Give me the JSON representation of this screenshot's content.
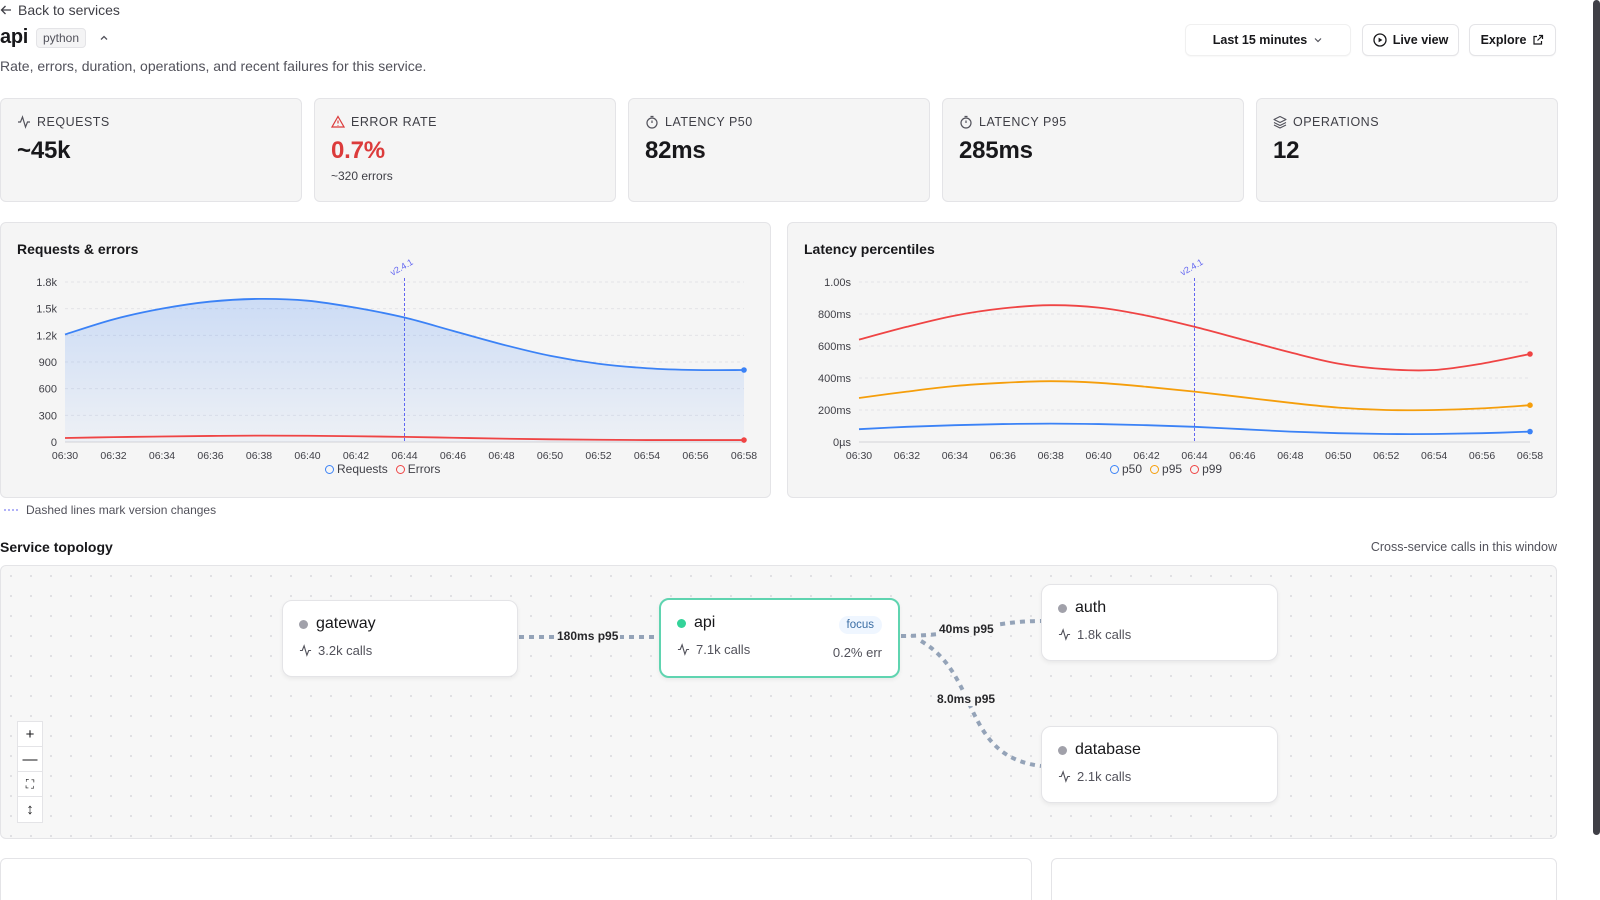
{
  "header": {
    "back_label": "Back to services",
    "service_name": "api",
    "language_badge": "python",
    "description": "Rate, errors, duration, operations, and recent failures for this service.",
    "time_range": "Last 15 minutes",
    "live_view_label": "Live view",
    "explore_label": "Explore"
  },
  "stats": [
    {
      "label": "REQUESTS",
      "icon": "activity-icon",
      "value": "~45k",
      "sub": ""
    },
    {
      "label": "ERROR RATE",
      "icon": "alert-triangle-icon",
      "value": "0.7%",
      "sub": "~320 errors",
      "value_color": "#dc3b3b"
    },
    {
      "label": "LATENCY P50",
      "icon": "timer-icon",
      "value": "82ms",
      "sub": ""
    },
    {
      "label": "LATENCY P95",
      "icon": "timer-icon",
      "value": "285ms",
      "sub": ""
    },
    {
      "label": "OPERATIONS",
      "icon": "layers-icon",
      "value": "12",
      "sub": ""
    }
  ],
  "chart_data": [
    {
      "type": "area",
      "title": "Requests & errors",
      "x": [
        "06:30",
        "06:32",
        "06:34",
        "06:36",
        "06:38",
        "06:40",
        "06:42",
        "06:44",
        "06:46",
        "06:48",
        "06:50",
        "06:52",
        "06:54",
        "06:56",
        "06:58"
      ],
      "yticks": [
        "0",
        "300",
        "600",
        "900",
        "1.2k",
        "1.5k",
        "1.8k"
      ],
      "ylim": [
        0,
        1800
      ],
      "series": [
        {
          "name": "Requests",
          "color": "#3b82f6",
          "values": [
            1210,
            1380,
            1500,
            1580,
            1610,
            1590,
            1510,
            1400,
            1250,
            1100,
            970,
            880,
            830,
            810,
            810
          ]
        },
        {
          "name": "Errors",
          "color": "#ef4444",
          "values": [
            45,
            55,
            62,
            68,
            72,
            70,
            65,
            58,
            48,
            38,
            30,
            25,
            22,
            22,
            22
          ]
        }
      ],
      "annotation": {
        "x": "06:44",
        "label": "v2.4.1"
      }
    },
    {
      "type": "line",
      "title": "Latency percentiles",
      "x": [
        "06:30",
        "06:32",
        "06:34",
        "06:36",
        "06:38",
        "06:40",
        "06:42",
        "06:44",
        "06:46",
        "06:48",
        "06:50",
        "06:52",
        "06:54",
        "06:56",
        "06:58"
      ],
      "yticks": [
        "0µs",
        "200ms",
        "400ms",
        "600ms",
        "800ms",
        "1.00s"
      ],
      "ylim": [
        0,
        1000
      ],
      "series": [
        {
          "name": "p50",
          "color": "#3b82f6",
          "values": [
            80,
            95,
            105,
            112,
            115,
            112,
            105,
            95,
            80,
            65,
            55,
            50,
            50,
            55,
            65
          ]
        },
        {
          "name": "p95",
          "color": "#f59e0b",
          "values": [
            275,
            315,
            350,
            370,
            380,
            370,
            345,
            315,
            280,
            245,
            215,
            200,
            200,
            210,
            230
          ]
        },
        {
          "name": "p99",
          "color": "#ef4444",
          "values": [
            640,
            720,
            790,
            835,
            855,
            840,
            790,
            720,
            640,
            560,
            490,
            455,
            450,
            490,
            550
          ]
        }
      ],
      "annotation": {
        "x": "06:44",
        "label": "v2.4.1"
      }
    }
  ],
  "note": "Dashed lines mark version changes",
  "topology": {
    "title": "Service topology",
    "note": "Cross-service calls in this window",
    "nodes": {
      "gateway": {
        "name": "gateway",
        "calls": "3.2k calls"
      },
      "api": {
        "name": "api",
        "calls": "7.1k calls",
        "badge": "focus",
        "err": "0.2% err"
      },
      "auth": {
        "name": "auth",
        "calls": "1.8k calls"
      },
      "database": {
        "name": "database",
        "calls": "2.1k calls"
      }
    },
    "edges": {
      "gateway_api": "180ms p95",
      "api_auth": "40ms p95",
      "api_database": "8.0ms p95"
    },
    "zoom_controls": [
      "+",
      "—",
      "⛶",
      "↕"
    ]
  },
  "colors": {
    "accent_focus": "#5fd4b0",
    "error": "#dc3b3b"
  }
}
